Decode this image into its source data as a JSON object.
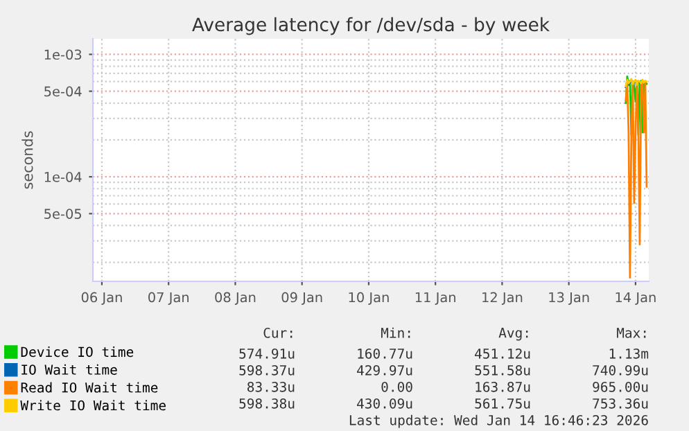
{
  "chart_data": {
    "type": "line",
    "title": "Average latency for /dev/sda - by week",
    "ylabel": "seconds",
    "x": [
      "2026-01-14T08:30",
      "2026-01-14T09:00",
      "2026-01-14T09:30",
      "2026-01-14T10:00",
      "2026-01-14T10:30",
      "2026-01-14T11:00",
      "2026-01-14T11:30",
      "2026-01-14T12:00",
      "2026-01-14T12:30",
      "2026-01-14T13:00",
      "2026-01-14T13:30",
      "2026-01-14T14:00",
      "2026-01-14T14:30",
      "2026-01-14T15:00",
      "2026-01-14T15:30",
      "2026-01-14T16:00"
    ],
    "series": [
      {
        "name": "Device IO time",
        "color": "#00cc00",
        "values": [
          0.0004,
          0.00066,
          0.00056,
          0.00061,
          0.00022,
          0.0006,
          0.00055,
          0.00041,
          0.0006,
          0.00022,
          0.00058,
          0.00061,
          0.00023,
          0.00056,
          0.00059,
          0.000575
        ]
      },
      {
        "name": "IO Wait time",
        "color": "#0066b3",
        "values": [
          0.00054,
          0.00061,
          0.00057,
          0.00059,
          0.00062,
          0.00056,
          0.00059,
          0.00061,
          0.00055,
          0.0006,
          0.00059,
          null,
          null,
          null,
          null,
          null
        ]
      },
      {
        "name": "Read IO Wait time",
        "color": "#ff8000",
        "values": [
          0.00042,
          0.0006,
          0.00023,
          1.5e-05,
          0.00022,
          0.00058,
          6.1e-05,
          0.00023,
          0.0006,
          0.00024,
          2.8e-05,
          0.00059,
          0.0006,
          0.00023,
          0.0006,
          8.3e-05
        ]
      },
      {
        "name": "Write IO Wait time",
        "color": "#ffcc00",
        "values": [
          0.00055,
          0.00062,
          0.00058,
          0.0006,
          0.00063,
          0.00057,
          0.0006,
          0.00062,
          0.00056,
          0.00061,
          0.0006,
          0.00058,
          0.00062,
          0.00059,
          0.00061,
          0.000598
        ]
      }
    ],
    "log": true,
    "ylim": [
      1.4e-05,
      0.00134
    ],
    "yticks": [
      {
        "value": 0.001,
        "label": "1e-03"
      },
      {
        "value": 0.0005,
        "label": "5e-04"
      },
      {
        "value": 0.0001,
        "label": "1e-04"
      },
      {
        "value": 5e-05,
        "label": "5e-05"
      }
    ],
    "xlim": [
      "2026-01-06T08:46",
      "2026-01-14T16:46"
    ],
    "xticks": [
      {
        "value": "2026-01-06T12:00",
        "label": "06 Jan"
      },
      {
        "value": "2026-01-07T12:00",
        "label": "07 Jan"
      },
      {
        "value": "2026-01-08T12:00",
        "label": "08 Jan"
      },
      {
        "value": "2026-01-09T12:00",
        "label": "09 Jan"
      },
      {
        "value": "2026-01-10T12:00",
        "label": "10 Jan"
      },
      {
        "value": "2026-01-11T12:00",
        "label": "11 Jan"
      },
      {
        "value": "2026-01-12T12:00",
        "label": "12 Jan"
      },
      {
        "value": "2026-01-13T12:00",
        "label": "13 Jan"
      },
      {
        "value": "2026-01-14T12:00",
        "label": "14 Jan"
      }
    ],
    "grid": true,
    "legend": "bottom",
    "marker": "none",
    "line_style": "solid",
    "annotations": [
      "Cur:",
      "Min:",
      "Avg:",
      "Max:",
      "574.91u",
      "160.77u",
      "451.12u",
      "1.13m",
      "598.37u",
      "429.97u",
      "551.58u",
      "740.99u",
      "83.33u",
      "0.00",
      "163.87u",
      "965.00u",
      "598.38u",
      "430.09u",
      "561.75u",
      "753.36u",
      "Last update: Wed Jan 14 16:46:23 2026"
    ]
  }
}
